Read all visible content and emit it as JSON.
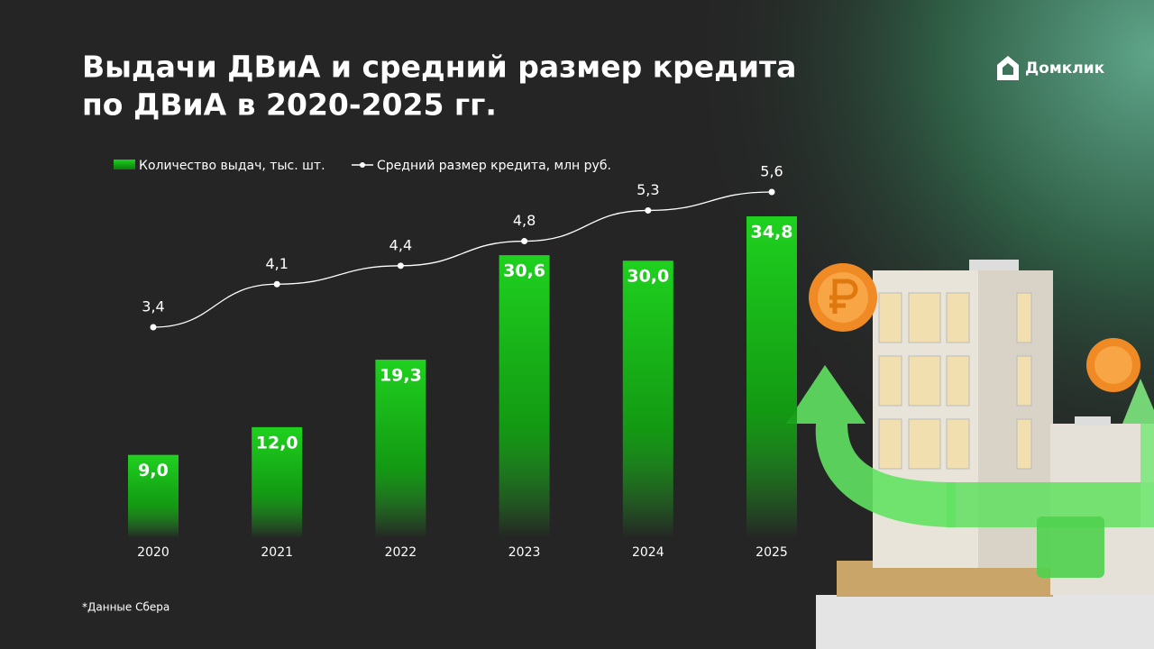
{
  "brand": "Домклик",
  "chart_data": {
    "type": "bar",
    "title": [
      "Выдачи ДВиА и средний размер кредита",
      "по ДВиА в 2020-2025 гг."
    ],
    "categories": [
      "2020",
      "2021",
      "2022",
      "2023",
      "2024",
      "2025"
    ],
    "series": [
      {
        "name": "Количество выдач, тыс. шт.",
        "type": "bar",
        "color": "#1fd11f",
        "values": [
          9.0,
          12.0,
          19.3,
          30.6,
          30.0,
          34.8
        ],
        "value_labels": [
          "9,0",
          "12,0",
          "19,3",
          "30,6",
          "30,0",
          "34,8"
        ]
      },
      {
        "name": "Средний размер кредита, млн руб.",
        "type": "line",
        "color": "#ffffff",
        "values": [
          3.4,
          4.1,
          4.4,
          4.8,
          5.3,
          5.6
        ],
        "value_labels": [
          "3,4",
          "4,1",
          "4,4",
          "4,8",
          "5,3",
          "5,6"
        ]
      }
    ],
    "footnote": "*Данные Сбера"
  }
}
